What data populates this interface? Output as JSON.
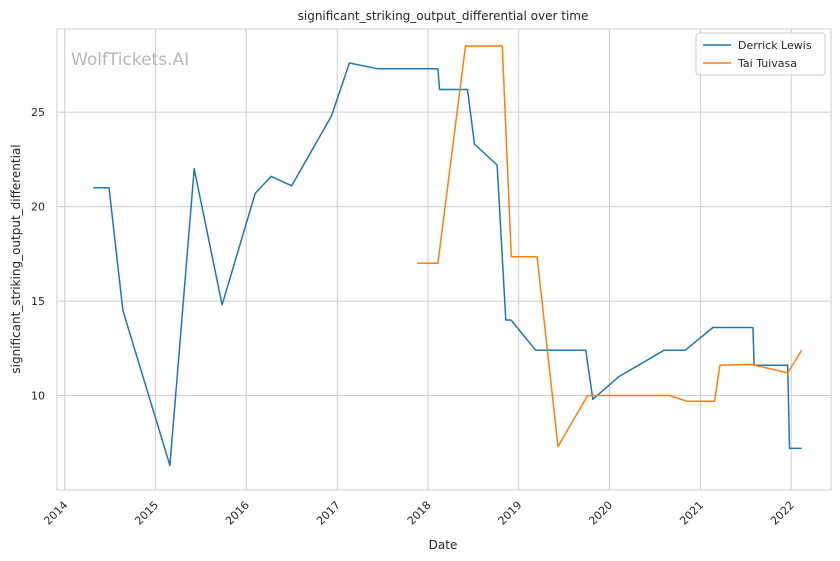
{
  "chart_data": {
    "type": "line",
    "title": "significant_striking_output_differential over time",
    "xlabel": "Date",
    "ylabel": "significant_striking_output_differential",
    "watermark": "WolfTickets.AI",
    "x_ticks": [
      "2014",
      "2015",
      "2016",
      "2017",
      "2018",
      "2019",
      "2020",
      "2021",
      "2022"
    ],
    "y_ticks": [
      "10",
      "15",
      "20",
      "25"
    ],
    "xlim": [
      "2013-12-01",
      "2022-06-10"
    ],
    "ylim": [
      5.0,
      29.4
    ],
    "grid": true,
    "legend_position": "top-right",
    "series": [
      {
        "name": "Derrick Lewis",
        "color": "#1f77b4",
        "points": [
          [
            "2014-04-26",
            21.0
          ],
          [
            "2014-06-28",
            21.0
          ],
          [
            "2014-08-23",
            14.5
          ],
          [
            "2015-02-28",
            6.3
          ],
          [
            "2015-06-06",
            22.0
          ],
          [
            "2015-09-26",
            14.8
          ],
          [
            "2016-02-06",
            20.7
          ],
          [
            "2016-04-10",
            21.6
          ],
          [
            "2016-07-02",
            21.1
          ],
          [
            "2016-12-09",
            24.8
          ],
          [
            "2017-02-19",
            27.6
          ],
          [
            "2017-06-11",
            27.3
          ],
          [
            "2018-02-10",
            27.3
          ],
          [
            "2018-02-17",
            26.2
          ],
          [
            "2018-06-09",
            26.2
          ],
          [
            "2018-07-07",
            23.3
          ],
          [
            "2018-10-06",
            22.2
          ],
          [
            "2018-11-10",
            14.0
          ],
          [
            "2018-12-01",
            14.0
          ],
          [
            "2019-03-10",
            12.4
          ],
          [
            "2019-09-28",
            12.4
          ],
          [
            "2019-10-26",
            9.8
          ],
          [
            "2020-02-08",
            11.0
          ],
          [
            "2020-08-08",
            12.4
          ],
          [
            "2020-11-01",
            12.4
          ],
          [
            "2021-02-20",
            13.6
          ],
          [
            "2021-07-31",
            13.6
          ],
          [
            "2021-08-05",
            11.6
          ],
          [
            "2021-12-18",
            11.6
          ],
          [
            "2021-12-25",
            7.2
          ],
          [
            "2022-02-12",
            7.2
          ]
        ]
      },
      {
        "name": "Tai Tuivasa",
        "color": "#ff7f0e",
        "points": [
          [
            "2017-11-19",
            17.0
          ],
          [
            "2018-02-10",
            17.0
          ],
          [
            "2018-06-01",
            28.5
          ],
          [
            "2018-10-27",
            28.5
          ],
          [
            "2018-12-02",
            17.35
          ],
          [
            "2019-03-16",
            17.35
          ],
          [
            "2019-06-08",
            7.3
          ],
          [
            "2019-10-05",
            10.0
          ],
          [
            "2020-08-29",
            10.0
          ],
          [
            "2020-11-07",
            9.7
          ],
          [
            "2021-02-27",
            9.7
          ],
          [
            "2021-03-20",
            11.6
          ],
          [
            "2021-07-24",
            11.65
          ],
          [
            "2021-12-18",
            11.2
          ],
          [
            "2022-02-12",
            12.4
          ]
        ]
      }
    ]
  }
}
